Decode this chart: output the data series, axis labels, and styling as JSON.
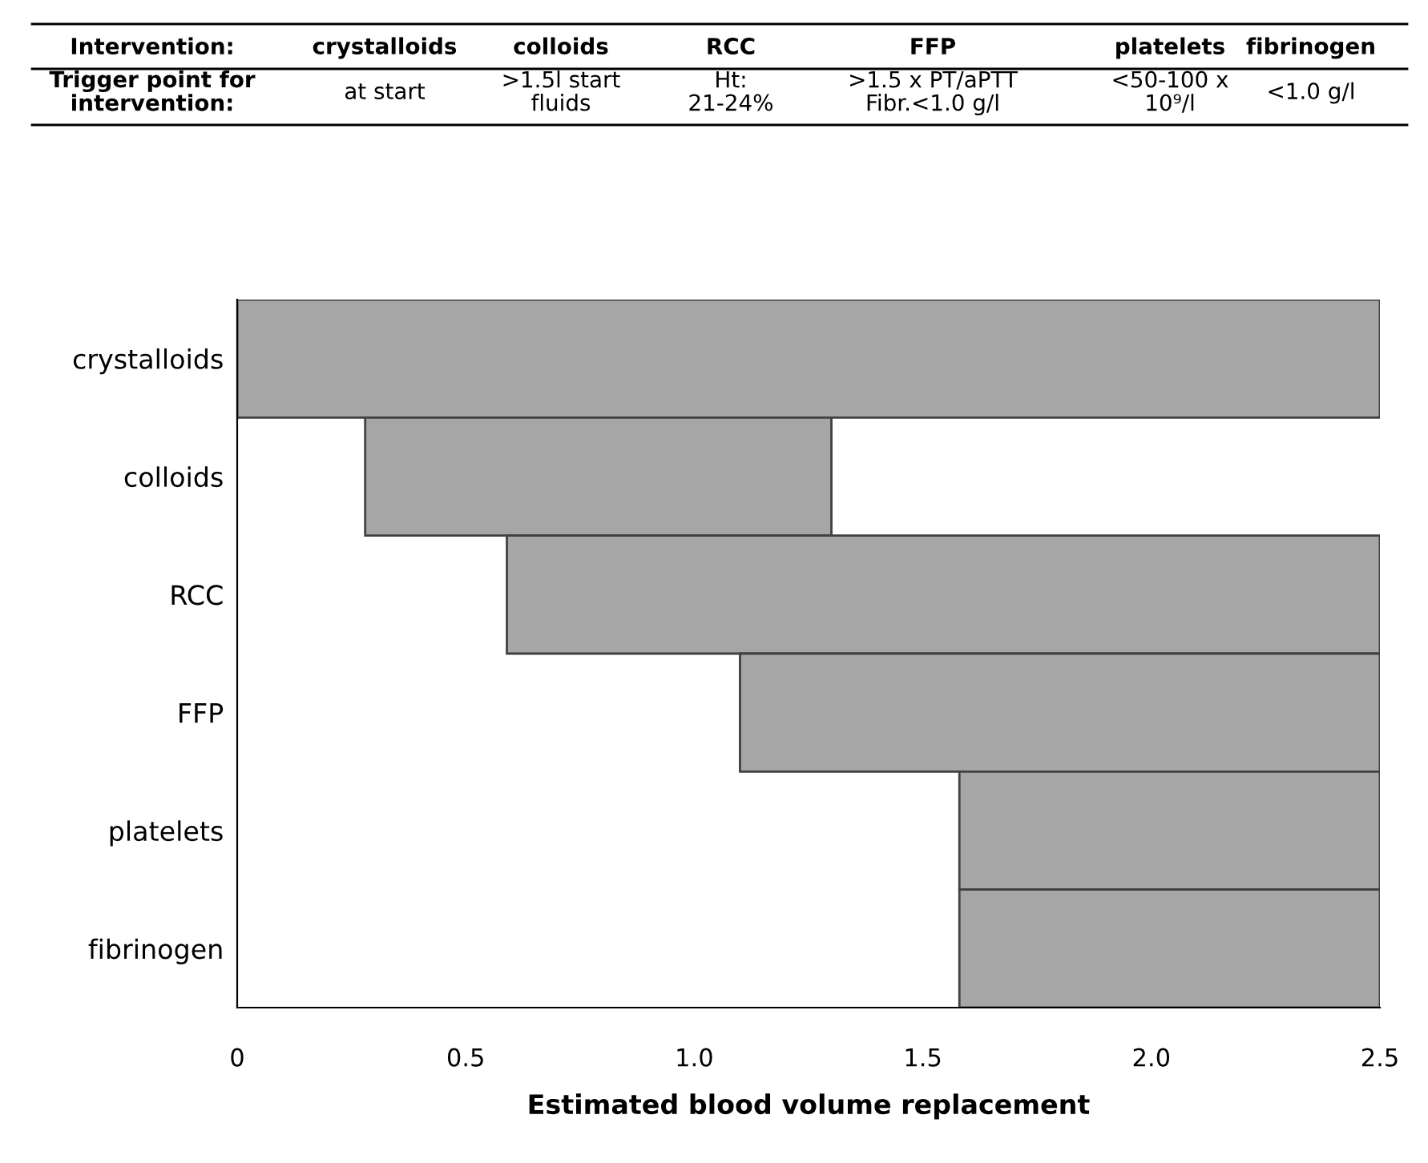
{
  "chart_data": {
    "type": "bar",
    "orientation": "horizontal",
    "categories": [
      "crystalloids",
      "colloids",
      "RCC",
      "FFP",
      "platelets",
      "fibrinogen"
    ],
    "base": [
      0,
      0.28,
      0.59,
      1.1,
      1.58,
      1.58
    ],
    "values": [
      2.5,
      1.02,
      1.91,
      1.4,
      0.92,
      0.92
    ],
    "color": "#a6a6a6",
    "xlim": [
      0,
      2.5
    ],
    "xticks": [
      0,
      {
        "value": 0.5,
        "label": "0.5"
      },
      {
        "value": 1,
        "label": "1.0"
      },
      {
        "value": 1.5,
        "label": "1.5"
      },
      {
        "value": 2,
        "label": "2.0"
      },
      {
        "value": 2.5,
        "label": "2.5"
      }
    ],
    "xlabel": "Estimated blood volume replacement",
    "annotations": [
      "Intervention:",
      "crystalloids",
      "colloids",
      "RCC",
      "FFP",
      "platelets",
      "fibrinogen",
      "Trigger point for\nintervention:",
      "at start",
      ">1.5l start\nfluids",
      "Ht:\n21-24%",
      ">1.5 x PT/aPTT\nFibr.<1.0 g/l",
      "<50-100 x\n10⁹/l",
      "<1.0 g/l"
    ],
    "grid": false,
    "legend": false
  }
}
